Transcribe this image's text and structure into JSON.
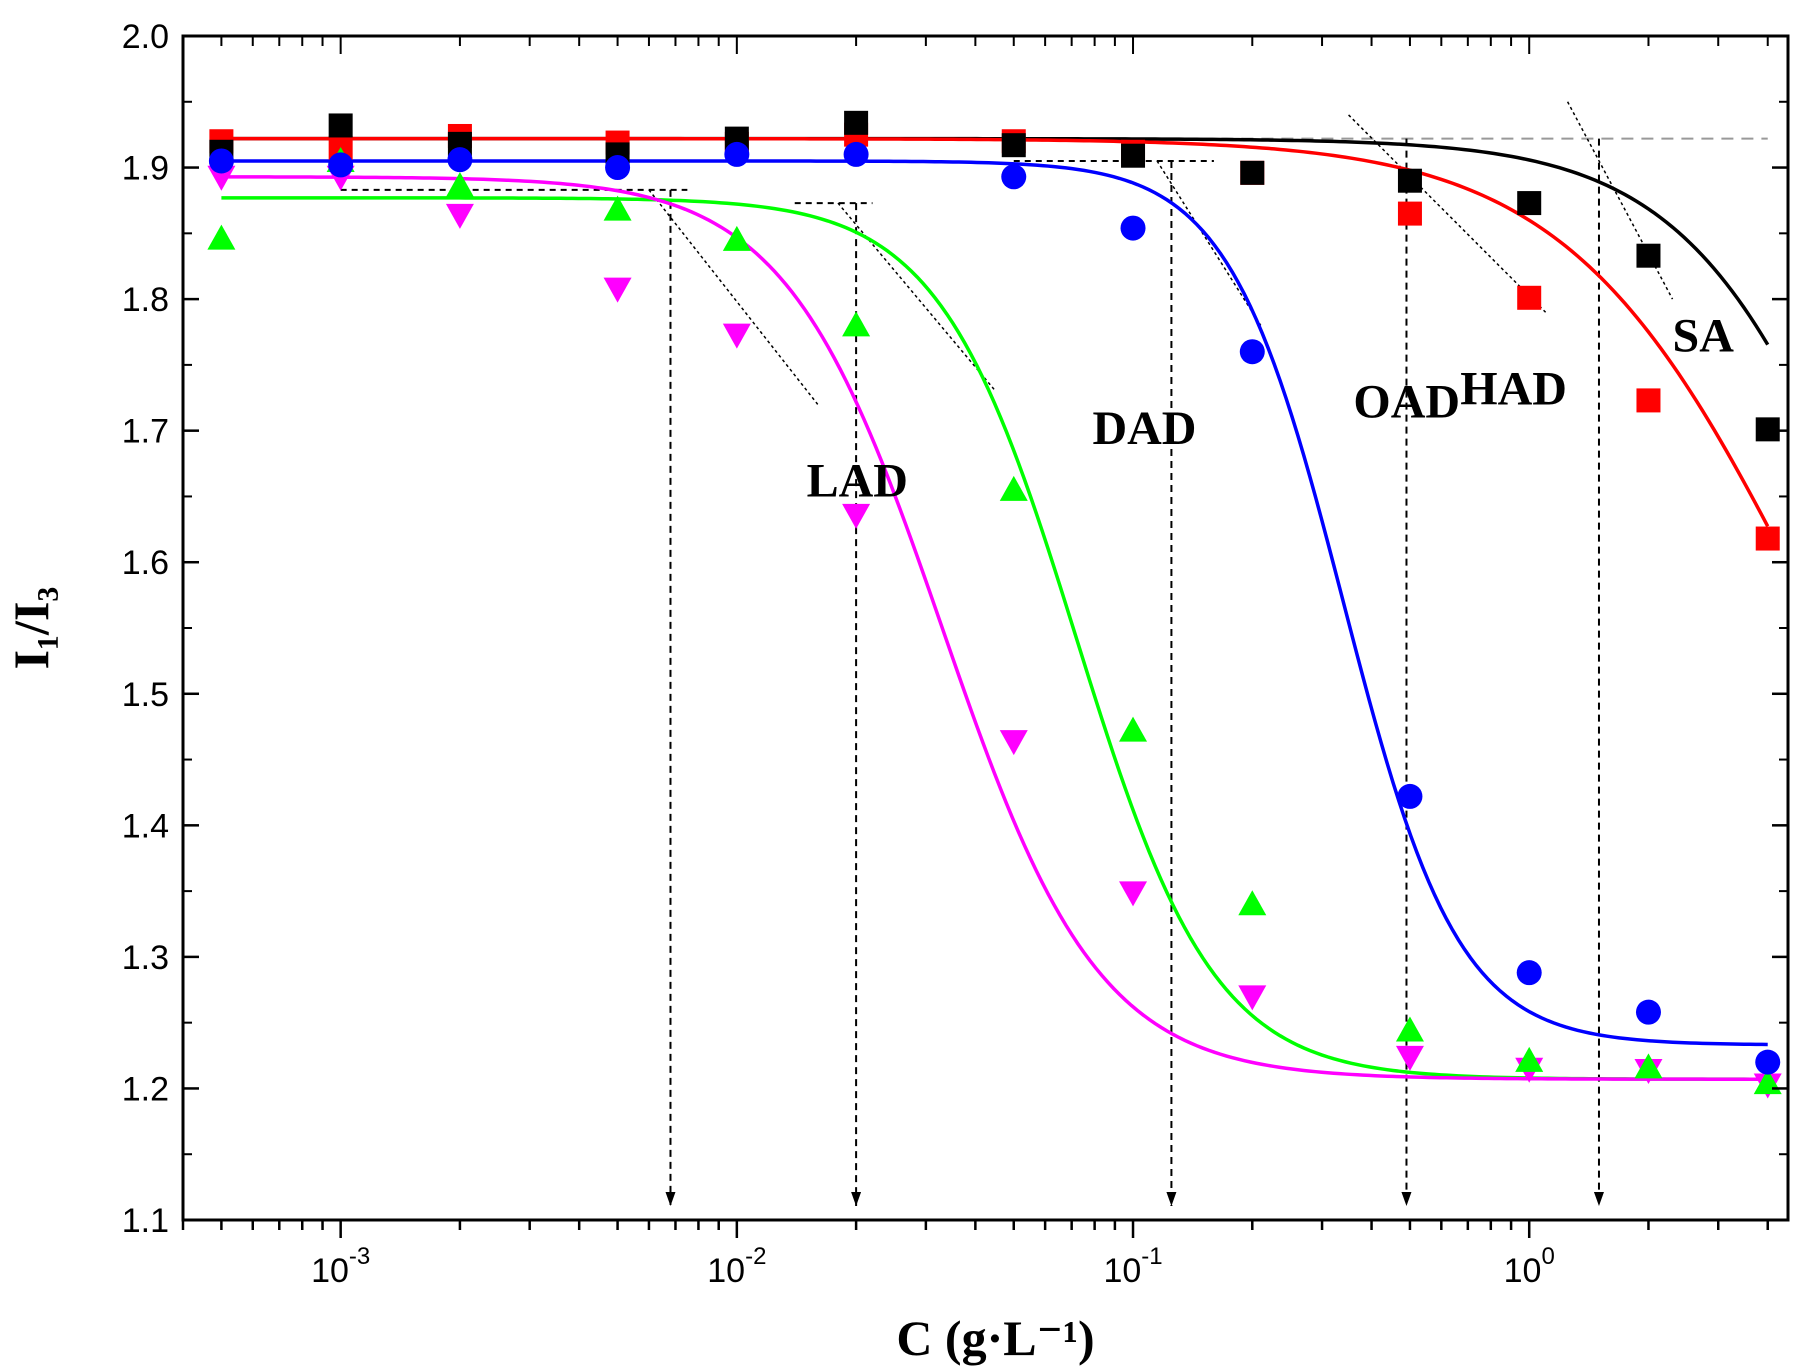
{
  "chart_data": {
    "type": "scatter",
    "title": "",
    "xlabel": "C (g·L⁻¹)",
    "ylabel": "I₁/I₃",
    "xscale": "log",
    "xlim": [
      0.0004,
      4.5
    ],
    "ylim": [
      1.1,
      2.0
    ],
    "ytick_labels": [
      "1.1",
      "1.2",
      "1.3",
      "1.4",
      "1.5",
      "1.6",
      "1.7",
      "1.8",
      "1.9",
      "2.0"
    ],
    "xtick_labels": [
      {
        "base": "10",
        "exp": "-3",
        "value": 0.001
      },
      {
        "base": "10",
        "exp": "-2",
        "value": 0.01
      },
      {
        "base": "10",
        "exp": "-1",
        "value": 0.1
      },
      {
        "base": "10",
        "exp": "0",
        "value": 1
      }
    ],
    "x": [
      0.0005,
      0.001,
      0.002,
      0.005,
      0.01,
      0.02,
      0.05,
      0.1,
      0.2,
      0.5,
      1,
      2,
      4
    ],
    "series": [
      {
        "name": "SA",
        "color": "#000000",
        "marker": "square",
        "values": [
          1.912,
          1.932,
          1.918,
          1.91,
          1.922,
          1.934,
          1.917,
          1.909,
          1.896,
          1.89,
          1.873,
          1.833,
          1.701
        ],
        "fit": {
          "top": 1.922,
          "bottom": 1.22,
          "x0": 8.0,
          "p": 1.8
        }
      },
      {
        "name": "HAD",
        "color": "#ff0000",
        "marker": "square",
        "values": [
          1.92,
          1.915,
          1.924,
          1.919,
          1.918,
          1.925,
          1.92,
          1.912,
          1.896,
          1.865,
          1.801,
          1.723,
          1.618
        ],
        "fit": {
          "top": 1.922,
          "bottom": 1.22,
          "x0": 5.0,
          "p": 1.45
        }
      },
      {
        "name": "OAD",
        "color": "#0000ff",
        "marker": "circle",
        "values": [
          1.905,
          1.902,
          1.906,
          1.9,
          1.91,
          1.91,
          1.893,
          1.854,
          1.76,
          1.422,
          1.288,
          1.258,
          1.22
        ],
        "fit": {
          "top": 1.905,
          "bottom": 1.233,
          "x0": 0.34,
          "p": 3.0
        }
      },
      {
        "name": "DAD",
        "color": "#00ff00",
        "marker": "triangle-up",
        "values": [
          1.846,
          1.905,
          1.886,
          1.868,
          1.845,
          1.78,
          1.655,
          1.472,
          1.34,
          1.244,
          1.221,
          1.216,
          1.204
        ],
        "fit": {
          "top": 1.877,
          "bottom": 1.207,
          "x0": 0.072,
          "p": 2.5
        }
      },
      {
        "name": "LAD",
        "color": "#ff00ff",
        "marker": "triangle-down",
        "values": [
          1.893,
          1.893,
          1.864,
          1.808,
          1.773,
          1.636,
          1.464,
          1.349,
          1.27,
          1.224,
          1.215,
          1.214,
          1.203
        ],
        "fit": {
          "top": 1.893,
          "bottom": 1.207,
          "x0": 0.033,
          "p": 2.2
        }
      }
    ],
    "cmc_markers_x": [
      0.0068,
      0.02,
      0.125,
      0.49,
      1.5
    ],
    "reference_lines": [
      {
        "x1": 0.0005,
        "x2": 4.0,
        "y": 1.922,
        "dash": "long",
        "color": "#999999"
      },
      {
        "x1": 0.001,
        "x2": 0.0075,
        "y": 1.883,
        "dash": "short",
        "color": "#000000"
      },
      {
        "x1": 0.014,
        "x2": 0.022,
        "y": 1.873,
        "dash": "short",
        "color": "#000000"
      },
      {
        "x1": 0.05,
        "x2": 0.16,
        "y": 1.905,
        "dash": "short",
        "color": "#000000"
      }
    ],
    "tangent_lines": [
      {
        "x1": 0.006,
        "y1": 1.883,
        "x2": 0.016,
        "y2": 1.72
      },
      {
        "x1": 0.018,
        "y1": 1.873,
        "x2": 0.045,
        "y2": 1.73
      },
      {
        "x1": 0.115,
        "y1": 1.905,
        "x2": 0.21,
        "y2": 1.78
      },
      {
        "x1": 0.35,
        "y1": 1.94,
        "x2": 1.1,
        "y2": 1.79
      },
      {
        "x1": 1.25,
        "y1": 1.95,
        "x2": 2.3,
        "y2": 1.8
      }
    ],
    "annotations": [
      {
        "text": "SA",
        "x": 2.3,
        "y": 1.76
      },
      {
        "text": "HAD",
        "x": 0.67,
        "y": 1.72
      },
      {
        "text": "OAD",
        "x": 0.36,
        "y": 1.71
      },
      {
        "text": "DAD",
        "x": 0.079,
        "y": 1.69
      },
      {
        "text": "LAD",
        "x": 0.015,
        "y": 1.65
      }
    ]
  }
}
